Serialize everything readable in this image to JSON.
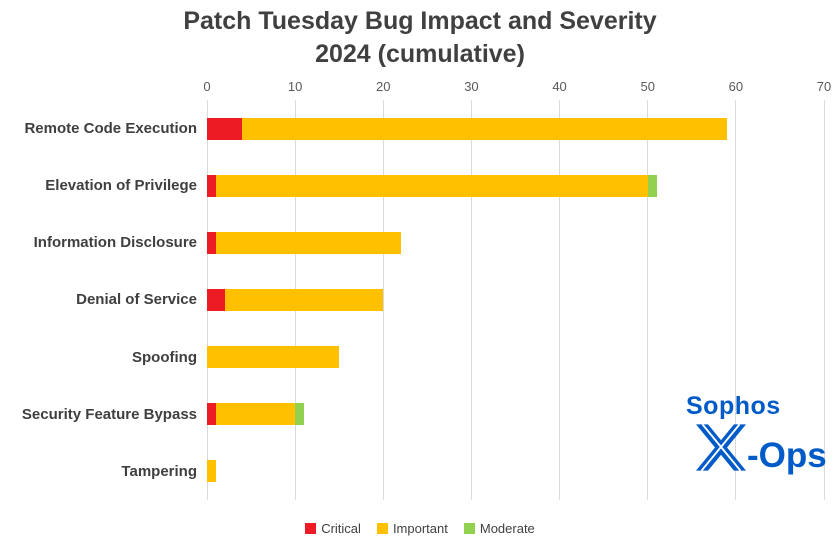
{
  "chart_data": {
    "type": "bar",
    "orientation": "horizontal",
    "stacked": true,
    "title": "Patch Tuesday Bug Impact and Severity 2024 (cumulative)",
    "title_lines": [
      "Patch Tuesday Bug Impact and Severity",
      "2024 (cumulative)"
    ],
    "categories": [
      "Remote Code Execution",
      "Elevation of Privilege",
      "Information Disclosure",
      "Denial of Service",
      "Spoofing",
      "Security Feature Bypass",
      "Tampering"
    ],
    "series": [
      {
        "name": "Critical",
        "color": "#ED1C24",
        "values": [
          4,
          1,
          1,
          2,
          0,
          1,
          0
        ]
      },
      {
        "name": "Important",
        "color": "#FFC000",
        "values": [
          55,
          49,
          21,
          18,
          15,
          9,
          1
        ]
      },
      {
        "name": "Moderate",
        "color": "#92D050",
        "values": [
          0,
          1,
          0,
          0,
          0,
          1,
          0
        ]
      }
    ],
    "totals": [
      59,
      51,
      22,
      20,
      15,
      11,
      1
    ],
    "xlim": [
      0,
      70
    ],
    "x_ticks": [
      0,
      10,
      20,
      30,
      40,
      50,
      60,
      70
    ],
    "grid": true,
    "legend_position": "bottom"
  },
  "logo": {
    "line1": "Sophos",
    "line2_icon": "x-mark",
    "line2_text": "-Ops",
    "color": "#005BC8"
  },
  "colors": {
    "title_text": "#404040",
    "axis_text": "#595959",
    "category_text": "#3f3f3f",
    "gridline": "#d9d9d9",
    "critical": "#ED1C24",
    "important": "#FFC000",
    "moderate": "#92D050",
    "sophos_blue": "#005BC8"
  }
}
